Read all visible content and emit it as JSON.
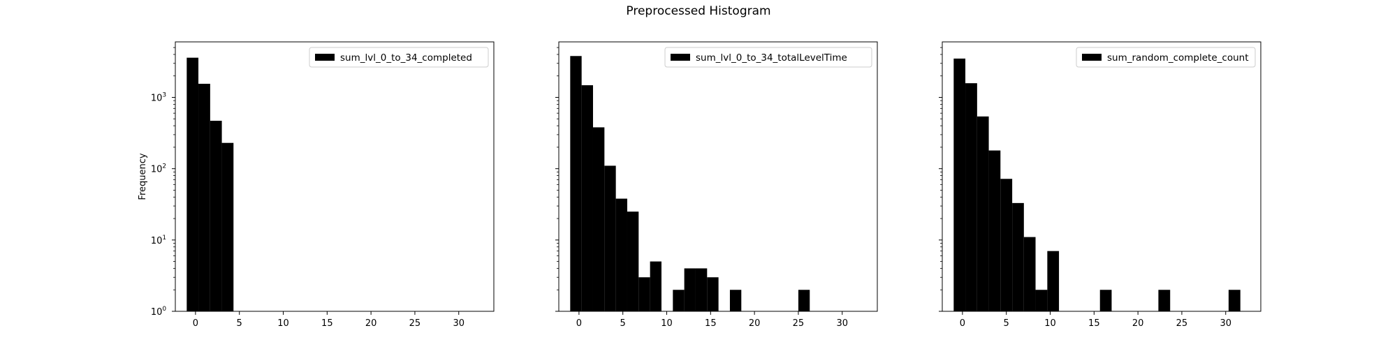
{
  "figure": {
    "title": "Preprocessed Histogram"
  },
  "chart_data": [
    {
      "type": "bar",
      "title": "",
      "xlabel": "",
      "ylabel": "Frequency",
      "yscale": "log",
      "ylim": [
        1,
        6000
      ],
      "xlim": [
        -2.3,
        34
      ],
      "xticks": [
        0,
        5,
        10,
        15,
        20,
        25,
        30
      ],
      "yticks": [
        1,
        10,
        100,
        1000
      ],
      "bin_width": 1.33,
      "bin_start": -1.0,
      "legend": {
        "label": "sum_lvl_0_to_34_completed",
        "position": "top-right"
      },
      "bars": [
        {
          "x0": -1.0,
          "x1": 0.33,
          "value": 3600
        },
        {
          "x0": 0.33,
          "x1": 1.67,
          "value": 1550
        },
        {
          "x0": 1.67,
          "x1": 3.0,
          "value": 470
        },
        {
          "x0": 3.0,
          "x1": 4.33,
          "value": 230
        }
      ]
    },
    {
      "type": "bar",
      "title": "",
      "xlabel": "",
      "ylabel": "",
      "yscale": "log",
      "ylim": [
        1,
        6000
      ],
      "xlim": [
        -2.3,
        34
      ],
      "xticks": [
        0,
        5,
        10,
        15,
        20,
        25,
        30
      ],
      "yticks": [
        1,
        10,
        100,
        1000
      ],
      "legend": {
        "label": "sum_lvl_0_to_34_totalLevelTime",
        "position": "top-right"
      },
      "bars": [
        {
          "x0": -1.0,
          "x1": 0.3,
          "value": 3800
        },
        {
          "x0": 0.3,
          "x1": 1.6,
          "value": 1480
        },
        {
          "x0": 1.6,
          "x1": 2.9,
          "value": 380
        },
        {
          "x0": 2.9,
          "x1": 4.2,
          "value": 110
        },
        {
          "x0": 4.2,
          "x1": 5.5,
          "value": 38
        },
        {
          "x0": 5.5,
          "x1": 6.8,
          "value": 25
        },
        {
          "x0": 6.8,
          "x1": 8.1,
          "value": 3
        },
        {
          "x0": 8.1,
          "x1": 9.4,
          "value": 5
        },
        {
          "x0": 10.7,
          "x1": 12.0,
          "value": 2
        },
        {
          "x0": 12.0,
          "x1": 13.3,
          "value": 4
        },
        {
          "x0": 13.3,
          "x1": 14.6,
          "value": 4
        },
        {
          "x0": 14.6,
          "x1": 15.9,
          "value": 3
        },
        {
          "x0": 17.2,
          "x1": 18.5,
          "value": 2
        },
        {
          "x0": 25.0,
          "x1": 26.3,
          "value": 2
        }
      ]
    },
    {
      "type": "bar",
      "title": "",
      "xlabel": "",
      "ylabel": "",
      "yscale": "log",
      "ylim": [
        1,
        6000
      ],
      "xlim": [
        -2.3,
        34
      ],
      "xticks": [
        0,
        5,
        10,
        15,
        20,
        25,
        30
      ],
      "yticks": [
        1,
        10,
        100,
        1000
      ],
      "legend": {
        "label": "sum_random_complete_count",
        "position": "top-right"
      },
      "bars": [
        {
          "x0": -1.0,
          "x1": 0.33,
          "value": 3500
        },
        {
          "x0": 0.33,
          "x1": 1.67,
          "value": 1580
        },
        {
          "x0": 1.67,
          "x1": 3.0,
          "value": 540
        },
        {
          "x0": 3.0,
          "x1": 4.33,
          "value": 180
        },
        {
          "x0": 4.33,
          "x1": 5.67,
          "value": 72
        },
        {
          "x0": 5.67,
          "x1": 7.0,
          "value": 33
        },
        {
          "x0": 7.0,
          "x1": 8.33,
          "value": 11
        },
        {
          "x0": 8.33,
          "x1": 9.67,
          "value": 2
        },
        {
          "x0": 9.67,
          "x1": 11.0,
          "value": 7
        },
        {
          "x0": 15.67,
          "x1": 17.0,
          "value": 2
        },
        {
          "x0": 22.33,
          "x1": 23.67,
          "value": 2
        },
        {
          "x0": 30.33,
          "x1": 31.67,
          "value": 2
        }
      ]
    }
  ]
}
